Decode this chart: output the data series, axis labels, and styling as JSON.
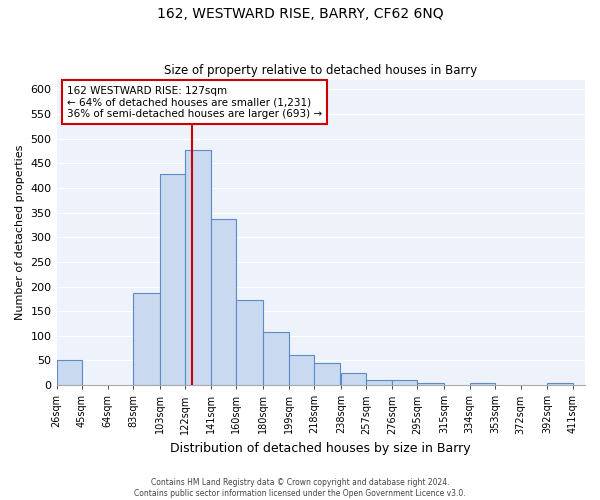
{
  "title_line1": "162, WESTWARD RISE, BARRY, CF62 6NQ",
  "title_line2": "Size of property relative to detached houses in Barry",
  "xlabel": "Distribution of detached houses by size in Barry",
  "ylabel": "Number of detached properties",
  "bar_left_edges": [
    26,
    45,
    64,
    83,
    103,
    122,
    141,
    160,
    180,
    199,
    218,
    238,
    257,
    276,
    295,
    315,
    334,
    353,
    372,
    392
  ],
  "bar_widths": [
    19,
    19,
    19,
    20,
    19,
    19,
    19,
    20,
    19,
    19,
    19,
    19,
    19,
    19,
    20,
    19,
    19,
    19,
    20,
    19
  ],
  "bar_heights": [
    50,
    0,
    0,
    187,
    428,
    477,
    338,
    173,
    108,
    61,
    44,
    24,
    10,
    10,
    5,
    0,
    5,
    0,
    0,
    5
  ],
  "tick_labels": [
    "26sqm",
    "45sqm",
    "64sqm",
    "83sqm",
    "103sqm",
    "122sqm",
    "141sqm",
    "160sqm",
    "180sqm",
    "199sqm",
    "218sqm",
    "238sqm",
    "257sqm",
    "276sqm",
    "295sqm",
    "315sqm",
    "334sqm",
    "353sqm",
    "372sqm",
    "392sqm",
    "411sqm"
  ],
  "tick_positions": [
    26,
    45,
    64,
    83,
    103,
    122,
    141,
    160,
    180,
    199,
    218,
    238,
    257,
    276,
    295,
    315,
    334,
    353,
    372,
    392,
    411
  ],
  "bar_color": "#c9d9f0",
  "bar_edge_color": "#5b8cc8",
  "vline_x": 127,
  "vline_color": "#cc0000",
  "annotation_text": "162 WESTWARD RISE: 127sqm\n← 64% of detached houses are smaller (1,231)\n36% of semi-detached houses are larger (693) →",
  "ylim": [
    0,
    620
  ],
  "xlim": [
    26,
    420
  ],
  "yticks": [
    0,
    50,
    100,
    150,
    200,
    250,
    300,
    350,
    400,
    450,
    500,
    550,
    600
  ],
  "footer_text": "Contains HM Land Registry data © Crown copyright and database right 2024.\nContains public sector information licensed under the Open Government Licence v3.0.",
  "bg_color": "#ffffff",
  "plot_bg_color": "#eef2fa",
  "grid_color": "#ffffff"
}
